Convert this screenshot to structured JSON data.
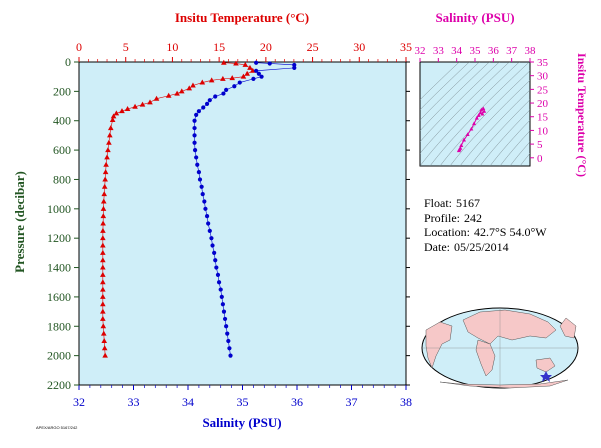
{
  "colors": {
    "temperature": "#dd0000",
    "salinity": "#0000cc",
    "ts": "#dd00aa",
    "plot_bg": "#cfeef8",
    "pressure_axis": "#225522",
    "land": "#f6c8c8",
    "ocean": "#cfeef8",
    "marker": "#3333cc"
  },
  "info": {
    "float_label": "Float:",
    "float_value": "5167",
    "profile_label": "Profile:",
    "profile_value": "242",
    "location_label": "Location:",
    "location_value": "42.7°S  54.0°W",
    "date_label": "Date:",
    "date_value": "05/25/2014"
  },
  "footer_code": "APEX/ARGO 5167/242",
  "chart_data": [
    {
      "type": "scatter",
      "title": "",
      "x_top_label": "Insitu Temperature (°C)",
      "x_bottom_label": "Salinity (PSU)",
      "ylabel": "Pressure (decibar)",
      "temp_range": [
        0,
        35
      ],
      "temp_ticks": [
        "0",
        "5",
        "10",
        "15",
        "20",
        "25",
        "30",
        "35"
      ],
      "sal_range": [
        32,
        38
      ],
      "sal_ticks": [
        "32",
        "33",
        "34",
        "35",
        "36",
        "37",
        "38"
      ],
      "pressure_range": [
        0,
        2200
      ],
      "pressure_ticks": [
        "0",
        "200",
        "400",
        "600",
        "800",
        "1000",
        "1200",
        "1400",
        "1600",
        "1800",
        "2000",
        "2200"
      ],
      "y_inverted": true,
      "grid": false,
      "series": [
        {
          "name": "",
          "marker": "triangle",
          "color": "#dd0000",
          "axis": "temperature",
          "points": [
            [
              15.5,
              5
            ],
            [
              16.8,
              10
            ],
            [
              17.8,
              20
            ],
            [
              18.3,
              40
            ],
            [
              18.6,
              60
            ],
            [
              18.0,
              80
            ],
            [
              17.6,
              100
            ],
            [
              16.4,
              110
            ],
            [
              15.4,
              115
            ],
            [
              14.2,
              125
            ],
            [
              13.2,
              140
            ],
            [
              12.2,
              160
            ],
            [
              11.8,
              180
            ],
            [
              11.0,
              200
            ],
            [
              10.5,
              215
            ],
            [
              9.6,
              230
            ],
            [
              8.3,
              250
            ],
            [
              7.6,
              275
            ],
            [
              6.8,
              290
            ],
            [
              6.0,
              305
            ],
            [
              5.2,
              320
            ],
            [
              4.6,
              335
            ],
            [
              4.0,
              350
            ],
            [
              3.7,
              370
            ],
            [
              3.6,
              395
            ],
            [
              3.4,
              450
            ],
            [
              3.3,
              500
            ],
            [
              3.2,
              550
            ],
            [
              3.1,
              600
            ],
            [
              3.0,
              650
            ],
            [
              2.9,
              700
            ],
            [
              2.85,
              750
            ],
            [
              2.8,
              800
            ],
            [
              2.75,
              850
            ],
            [
              2.7,
              900
            ],
            [
              2.65,
              950
            ],
            [
              2.62,
              1000
            ],
            [
              2.6,
              1050
            ],
            [
              2.58,
              1100
            ],
            [
              2.56,
              1150
            ],
            [
              2.55,
              1200
            ],
            [
              2.55,
              1250
            ],
            [
              2.55,
              1300
            ],
            [
              2.55,
              1350
            ],
            [
              2.55,
              1400
            ],
            [
              2.55,
              1450
            ],
            [
              2.55,
              1500
            ],
            [
              2.55,
              1550
            ],
            [
              2.55,
              1600
            ],
            [
              2.55,
              1650
            ],
            [
              2.55,
              1700
            ],
            [
              2.55,
              1750
            ],
            [
              2.6,
              1800
            ],
            [
              2.65,
              1850
            ],
            [
              2.7,
              1900
            ],
            [
              2.75,
              1950
            ],
            [
              2.8,
              2000
            ]
          ]
        },
        {
          "name": "",
          "marker": "circle",
          "color": "#0000cc",
          "axis": "salinity",
          "points": [
            [
              35.25,
              5
            ],
            [
              35.5,
              10
            ],
            [
              35.95,
              20
            ],
            [
              35.95,
              40
            ],
            [
              35.25,
              60
            ],
            [
              35.3,
              80
            ],
            [
              35.35,
              100
            ],
            [
              35.2,
              115
            ],
            [
              34.95,
              140
            ],
            [
              34.85,
              165
            ],
            [
              34.7,
              190
            ],
            [
              34.65,
              215
            ],
            [
              34.5,
              235
            ],
            [
              34.4,
              260
            ],
            [
              34.35,
              285
            ],
            [
              34.28,
              310
            ],
            [
              34.2,
              335
            ],
            [
              34.15,
              360
            ],
            [
              34.12,
              400
            ],
            [
              34.12,
              450
            ],
            [
              34.12,
              500
            ],
            [
              34.12,
              550
            ],
            [
              34.13,
              600
            ],
            [
              34.15,
              650
            ],
            [
              34.17,
              700
            ],
            [
              34.2,
              750
            ],
            [
              34.22,
              800
            ],
            [
              34.25,
              850
            ],
            [
              34.27,
              900
            ],
            [
              34.3,
              950
            ],
            [
              34.32,
              1000
            ],
            [
              34.35,
              1050
            ],
            [
              34.37,
              1100
            ],
            [
              34.4,
              1150
            ],
            [
              34.43,
              1200
            ],
            [
              34.45,
              1250
            ],
            [
              34.48,
              1300
            ],
            [
              34.5,
              1350
            ],
            [
              34.52,
              1400
            ],
            [
              34.55,
              1450
            ],
            [
              34.57,
              1500
            ],
            [
              34.6,
              1550
            ],
            [
              34.62,
              1600
            ],
            [
              34.64,
              1650
            ],
            [
              34.66,
              1700
            ],
            [
              34.68,
              1750
            ],
            [
              34.7,
              1800
            ],
            [
              34.72,
              1850
            ],
            [
              34.74,
              1900
            ],
            [
              34.76,
              1950
            ],
            [
              34.78,
              2000
            ]
          ]
        }
      ]
    },
    {
      "type": "scatter",
      "title": "",
      "xlabel": "Salinity (PSU)",
      "ylabel": "Insitu Temperature (°C)",
      "xlim": [
        32,
        38
      ],
      "ylim": [
        -3,
        35
      ],
      "x_ticks": [
        "32",
        "33",
        "34",
        "35",
        "36",
        "37",
        "38"
      ],
      "y_ticks": [
        "0",
        "5",
        "10",
        "15",
        "20",
        "25",
        "30",
        "35"
      ],
      "series": [
        {
          "name": "",
          "color": "#dd00aa",
          "points": [
            [
              34.12,
              2.6
            ],
            [
              34.15,
              3.0
            ],
            [
              34.2,
              3.5
            ],
            [
              34.25,
              4.5
            ],
            [
              34.4,
              6.5
            ],
            [
              34.6,
              8.5
            ],
            [
              34.8,
              10.5
            ],
            [
              34.95,
              12.5
            ],
            [
              35.1,
              14.5
            ],
            [
              35.2,
              15.5
            ],
            [
              35.3,
              16.5
            ],
            [
              35.35,
              17.5
            ],
            [
              35.45,
              18.0
            ],
            [
              35.5,
              17.0
            ],
            [
              35.4,
              16.0
            ]
          ]
        }
      ]
    }
  ]
}
